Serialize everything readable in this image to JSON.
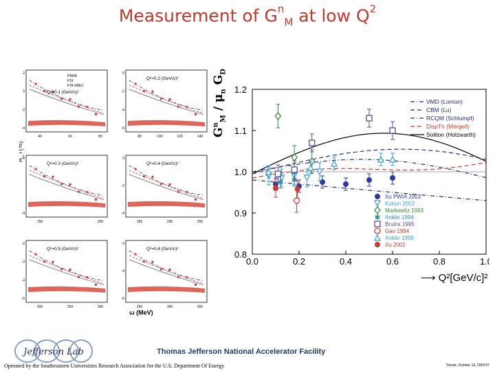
{
  "slide": {
    "title_main": "Measurement of G",
    "title_sup": "n",
    "title_sub": "M",
    "title_rest": " at low Q",
    "title_q2sup": "2",
    "footer_lab": "Thomas Jefferson National Accelerator Facility",
    "footer_operator": "Operated by the Southeastern Universities Research Association for the U.S. Department Of Energy",
    "footer_date": "Trieste, October 14, 2004 67",
    "logo_text": "Jefferson Lab"
  },
  "colors": {
    "title": "#c0392b",
    "footer": "#223a6b"
  },
  "left_panels": {
    "ylabel": "A_T(%)",
    "xlabel": "ω (MeV)",
    "legend": [
      "PWIA",
      "FSI",
      "FSI+MEC"
    ],
    "panels": [
      {
        "label": "Q²=0.1 (GeV/c)²",
        "xticks": [
          "40",
          "60",
          "80"
        ],
        "yticks": [
          "2",
          "0",
          "-2",
          "-4"
        ]
      },
      {
        "label": "Q²=0.2 (GeV/c)²",
        "xticks": [
          "80",
          "100",
          "120",
          "140"
        ],
        "yticks": [
          "0",
          "-2",
          "-4",
          "-6"
        ]
      },
      {
        "label": "Q²=0.3 (GeV/c)²",
        "xticks": [
          "150",
          "200"
        ],
        "yticks": [
          "-2",
          "-4"
        ]
      },
      {
        "label": "Q²=0.4 (GeV/c)²",
        "xticks": [
          "150",
          "200",
          "250"
        ],
        "yticks": [
          "0",
          "-2",
          "-4"
        ]
      },
      {
        "label": "Q²=0.5 (GeV/c)²",
        "xticks": [
          "200",
          "250",
          "300"
        ],
        "yticks": [
          "-2",
          "-3",
          "-4",
          "-5"
        ]
      },
      {
        "label": "Q²=0.6 (GeV/c)²",
        "xticks": [
          "250",
          "300",
          "350"
        ],
        "yticks": [
          "-2",
          "-4",
          "-6"
        ]
      }
    ]
  },
  "chart_data": {
    "type": "scatter",
    "title": "",
    "xlabel": "Q²[GeV/c]²",
    "ylabel": "G^n_M / μ_n G_D",
    "xlim": [
      0.0,
      1.0
    ],
    "ylim": [
      0.8,
      1.2
    ],
    "xticks": [
      "0.0",
      "0.2",
      "0.4",
      "0.6",
      "0.8",
      "1.0"
    ],
    "yticks": [
      "0.8",
      "0.9",
      "1.0",
      "1.1",
      "1.2"
    ],
    "curves": [
      {
        "name": "VMD (Lomon)",
        "style": "dash-dot",
        "color": "#1f2e7a"
      },
      {
        "name": "CBM (Lu)",
        "style": "dashed",
        "color": "#1f2e7a"
      },
      {
        "name": "RCQM (Schlumpf)",
        "style": "dash-dot",
        "color": "#1f2e7a"
      },
      {
        "name": "DispTh (Mergell)",
        "style": "dashed",
        "color": "#d3382e"
      },
      {
        "name": "Soliton (Holzwarth)",
        "style": "solid",
        "color": "#000000"
      }
    ],
    "series": [
      {
        "name": "Xu PWIA 2003",
        "marker": "filled-circle",
        "color": "#2a3aa0",
        "points": [
          [
            0.1,
            0.97
          ],
          [
            0.2,
            0.965
          ],
          [
            0.3,
            0.975
          ],
          [
            0.4,
            0.97
          ],
          [
            0.5,
            0.98
          ],
          [
            0.6,
            0.985
          ]
        ]
      },
      {
        "name": "Kubon 2002",
        "marker": "open-triangle-down",
        "color": "#3aa0d6",
        "points": [
          [
            0.071,
            0.99
          ],
          [
            0.125,
            0.985
          ],
          [
            0.179,
            0.99
          ],
          [
            0.234,
            0.985
          ],
          [
            0.288,
            1.0
          ]
        ]
      },
      {
        "name": "Markowitz 1993",
        "marker": "open-diamond",
        "color": "#2e8b3a",
        "points": [
          [
            0.11,
            1.135
          ],
          [
            0.18,
            1.035
          ],
          [
            0.255,
            1.025
          ]
        ]
      },
      {
        "name": "Anklin 1994",
        "marker": "star",
        "color": "#2a8fb0",
        "points": [
          [
            0.12,
            0.975
          ],
          [
            0.18,
            0.98
          ]
        ]
      },
      {
        "name": "Bruins 1995",
        "marker": "open-square",
        "color": "#5a4a9a",
        "points": [
          [
            0.11,
            0.995
          ],
          [
            0.18,
            1.005
          ],
          [
            0.255,
            1.07
          ],
          [
            0.5,
            1.13
          ],
          [
            0.6,
            1.1
          ]
        ]
      },
      {
        "name": "Gao 1994",
        "marker": "open-circle",
        "color": "#d3382e",
        "points": [
          [
            0.19,
            0.93
          ]
        ]
      },
      {
        "name": "Anklin 1998",
        "marker": "open-triangle-up",
        "color": "#3aa0d6",
        "points": [
          [
            0.07,
            1.0
          ],
          [
            0.25,
            1.01
          ],
          [
            0.35,
            1.02
          ],
          [
            0.55,
            1.03
          ],
          [
            0.6,
            1.03
          ]
        ]
      },
      {
        "name": "Xu 2002",
        "marker": "filled-circle",
        "color": "#d3382e",
        "points": [
          [
            0.1,
            0.96
          ],
          [
            0.193,
            0.958
          ]
        ]
      }
    ]
  }
}
